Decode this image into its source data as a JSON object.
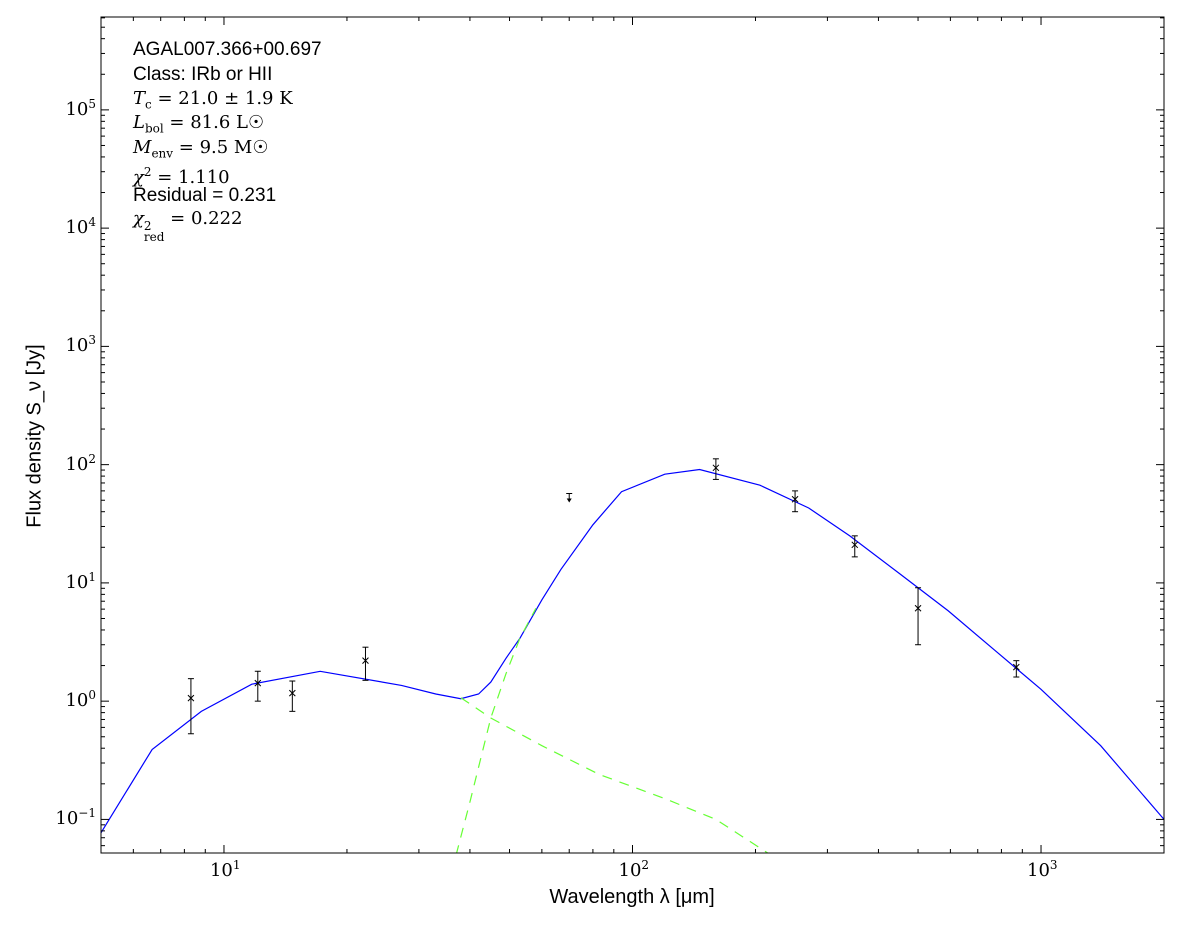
{
  "chart_data": {
    "type": "scatter",
    "xlabel": "Wavelength λ [μm]",
    "ylabel": "Flux density S_ν [Jy]",
    "xscale": "log",
    "yscale": "log",
    "xlim": [
      5,
      2000
    ],
    "ylim": [
      0.052,
      610000
    ],
    "grid": false,
    "x_ticks": [
      {
        "base": "10",
        "exp": "1",
        "value": 10
      },
      {
        "base": "10",
        "exp": "2",
        "value": 100
      },
      {
        "base": "10",
        "exp": "3",
        "value": 1000
      }
    ],
    "y_ticks": [
      {
        "base": "10",
        "exp": "−1",
        "value": 0.1
      },
      {
        "base": "10",
        "exp": "0",
        "value": 1
      },
      {
        "base": "10",
        "exp": "1",
        "value": 10
      },
      {
        "base": "10",
        "exp": "2",
        "value": 100
      },
      {
        "base": "10",
        "exp": "3",
        "value": 1000
      },
      {
        "base": "10",
        "exp": "4",
        "value": 10000
      },
      {
        "base": "10",
        "exp": "5",
        "value": 100000
      }
    ],
    "annotations": {
      "name": "AGAL007.366+00.697",
      "class": "Class: IRb or HII",
      "tc": {
        "sym": "T",
        "sub": "c",
        "rest": " = 21.0 ± 1.9 K"
      },
      "lbol": {
        "sym": "L",
        "sub": "bol",
        "rest": " = 81.6 L☉"
      },
      "menv": {
        "sym": "M",
        "sub": "env",
        "rest": " = 9.5 M☉"
      },
      "chi2": {
        "sym": "χ",
        "sup": "2",
        "rest": " = 1.110"
      },
      "residual": "Residual = 0.231",
      "chi2red": {
        "sym": "χ",
        "sup": "2",
        "sub": "red",
        "rest": " = 0.222"
      }
    },
    "points": [
      {
        "x": 8.3,
        "y": 1.06,
        "lo": 0.53,
        "hi": 1.55
      },
      {
        "x": 12.1,
        "y": 1.42,
        "lo": 1.0,
        "hi": 1.79
      },
      {
        "x": 14.7,
        "y": 1.17,
        "lo": 0.82,
        "hi": 1.48
      },
      {
        "x": 22.2,
        "y": 2.2,
        "lo": 1.5,
        "hi": 2.86
      },
      {
        "x": 160,
        "y": 94,
        "lo": 75,
        "hi": 112
      },
      {
        "x": 250,
        "y": 51,
        "lo": 40,
        "hi": 60
      },
      {
        "x": 350,
        "y": 21,
        "lo": 16.6,
        "hi": 25
      },
      {
        "x": 500,
        "y": 6.1,
        "lo": 3.0,
        "hi": 9.1
      },
      {
        "x": 870,
        "y": 1.94,
        "lo": 1.6,
        "hi": 2.2
      }
    ],
    "upper_limits": [
      {
        "x": 70,
        "y": 57
      }
    ],
    "series": [
      {
        "style": "solid",
        "color": "#0000ff",
        "x": [
          5,
          6.67,
          8.8,
          11.7,
          17.2,
          27.2,
          33,
          38,
          42,
          45,
          49,
          53,
          60,
          66.8,
          80,
          94,
          120,
          146,
          205,
          270,
          340,
          450,
          593,
          780,
          1000,
          1400,
          2000
        ],
        "y": [
          0.077,
          0.39,
          0.82,
          1.39,
          1.79,
          1.36,
          1.15,
          1.05,
          1.15,
          1.45,
          2.3,
          3.4,
          7.2,
          13,
          31,
          59,
          83,
          91,
          67,
          43,
          25,
          12,
          5.8,
          2.6,
          1.26,
          0.42,
          0.1
        ]
      },
      {
        "style": "dashed",
        "color": "#66ff33",
        "x": [
          38,
          45,
          60,
          83,
          120,
          160,
          218
        ],
        "y": [
          1.07,
          0.72,
          0.42,
          0.24,
          0.15,
          0.1,
          0.05
        ]
      },
      {
        "style": "dashed",
        "color": "#66ff33",
        "x": [
          37,
          40,
          45,
          49,
          53,
          58
        ],
        "y": [
          0.05,
          0.14,
          0.72,
          1.7,
          3.4,
          6.1
        ]
      }
    ]
  }
}
